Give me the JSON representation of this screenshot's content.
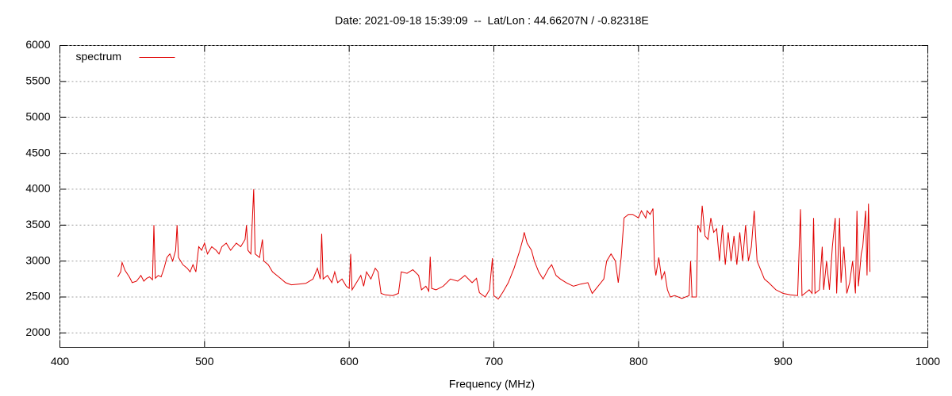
{
  "chart_data": {
    "type": "line",
    "title": "Date: 2021-09-18 15:39:09  --  Lat/Lon : 44.66207N / -0.82318E",
    "xlabel": "Frequency (MHz)",
    "xlim": [
      400,
      1000
    ],
    "xticks": [
      400,
      500,
      600,
      700,
      800,
      900,
      1000
    ],
    "ylim": [
      1800,
      6000
    ],
    "yticks": [
      2000,
      2500,
      3000,
      3500,
      4000,
      4500,
      5000,
      5500,
      6000
    ],
    "grid": true,
    "legend": "top-left",
    "x": [
      440,
      442,
      443,
      445,
      448,
      450,
      453,
      456,
      458,
      460,
      462,
      464,
      465,
      466,
      468,
      470,
      472,
      474,
      476,
      478,
      480,
      481,
      482,
      485,
      488,
      490,
      492,
      494,
      496,
      498,
      500,
      502,
      505,
      508,
      510,
      512,
      515,
      518,
      520,
      522,
      525,
      528,
      529,
      530,
      532,
      534,
      535,
      538,
      540,
      541,
      544,
      547,
      550,
      553,
      556,
      560,
      565,
      570,
      575,
      578,
      580,
      581,
      582,
      585,
      588,
      590,
      592,
      595,
      598,
      600,
      601,
      602,
      605,
      608,
      610,
      612,
      615,
      618,
      620,
      622,
      625,
      630,
      634,
      636,
      640,
      644,
      648,
      650,
      653,
      655,
      656,
      657,
      660,
      665,
      670,
      675,
      680,
      685,
      688,
      690,
      694,
      697,
      699,
      700,
      703,
      706,
      710,
      714,
      718,
      720,
      721,
      723,
      726,
      728,
      731,
      734,
      738,
      740,
      743,
      746,
      750,
      755,
      760,
      765,
      768,
      772,
      776,
      778,
      781,
      784,
      786,
      788,
      790,
      793,
      796,
      800,
      802,
      805,
      806,
      808,
      810,
      811,
      812,
      814,
      816,
      818,
      820,
      822,
      825,
      830,
      835,
      836,
      837,
      840,
      841,
      843,
      844,
      846,
      848,
      850,
      852,
      854,
      856,
      858,
      860,
      862,
      864,
      866,
      868,
      870,
      872,
      874,
      876,
      878,
      880,
      882,
      884,
      887,
      890,
      895,
      900,
      905,
      910,
      912,
      913,
      915,
      918,
      920,
      921,
      922,
      925,
      927,
      928,
      930,
      932,
      934,
      936,
      937,
      939,
      940,
      942,
      944,
      946,
      948,
      950,
      951,
      952,
      954,
      955,
      957,
      958,
      959,
      960
    ],
    "series": [
      {
        "name": "spectrum",
        "color": "#e00000",
        "values": [
          2780,
          2850,
          2980,
          2870,
          2780,
          2700,
          2720,
          2800,
          2720,
          2760,
          2780,
          2740,
          3500,
          2760,
          2800,
          2780,
          2900,
          3050,
          3100,
          3000,
          3150,
          3500,
          3050,
          2950,
          2900,
          2850,
          2950,
          2850,
          3200,
          3150,
          3250,
          3100,
          3200,
          3150,
          3100,
          3200,
          3250,
          3150,
          3200,
          3250,
          3200,
          3300,
          3500,
          3150,
          3100,
          4000,
          3100,
          3050,
          3300,
          3000,
          2950,
          2850,
          2800,
          2750,
          2700,
          2670,
          2680,
          2690,
          2750,
          2900,
          2750,
          3380,
          2750,
          2800,
          2700,
          2850,
          2700,
          2750,
          2650,
          2620,
          3100,
          2600,
          2700,
          2800,
          2650,
          2850,
          2750,
          2900,
          2850,
          2550,
          2530,
          2520,
          2550,
          2850,
          2830,
          2880,
          2800,
          2600,
          2650,
          2580,
          3060,
          2620,
          2600,
          2650,
          2750,
          2720,
          2800,
          2700,
          2760,
          2560,
          2500,
          2600,
          3040,
          2520,
          2470,
          2560,
          2700,
          2900,
          3150,
          3300,
          3400,
          3250,
          3150,
          3000,
          2850,
          2750,
          2900,
          2950,
          2800,
          2750,
          2700,
          2650,
          2680,
          2700,
          2550,
          2650,
          2750,
          3000,
          3100,
          3000,
          2700,
          3050,
          3600,
          3650,
          3650,
          3600,
          3700,
          3600,
          3700,
          3650,
          3730,
          2950,
          2800,
          3050,
          2750,
          2850,
          2600,
          2500,
          2520,
          2480,
          2520,
          3000,
          2500,
          2500,
          3500,
          3400,
          3770,
          3350,
          3300,
          3600,
          3400,
          3450,
          3000,
          3500,
          2950,
          3400,
          3000,
          3350,
          2950,
          3400,
          3000,
          3500,
          3000,
          3200,
          3700,
          3000,
          2900,
          2750,
          2700,
          2600,
          2550,
          2530,
          2520,
          3720,
          2520,
          2550,
          2600,
          2550,
          3600,
          2550,
          2600,
          3200,
          2600,
          3000,
          2600,
          3200,
          3600,
          2550,
          3600,
          2700,
          3200,
          2550,
          2700,
          3000,
          2550,
          3700,
          2650,
          3100,
          3200,
          3700,
          2800,
          3800,
          2850
        ]
      }
    ]
  }
}
